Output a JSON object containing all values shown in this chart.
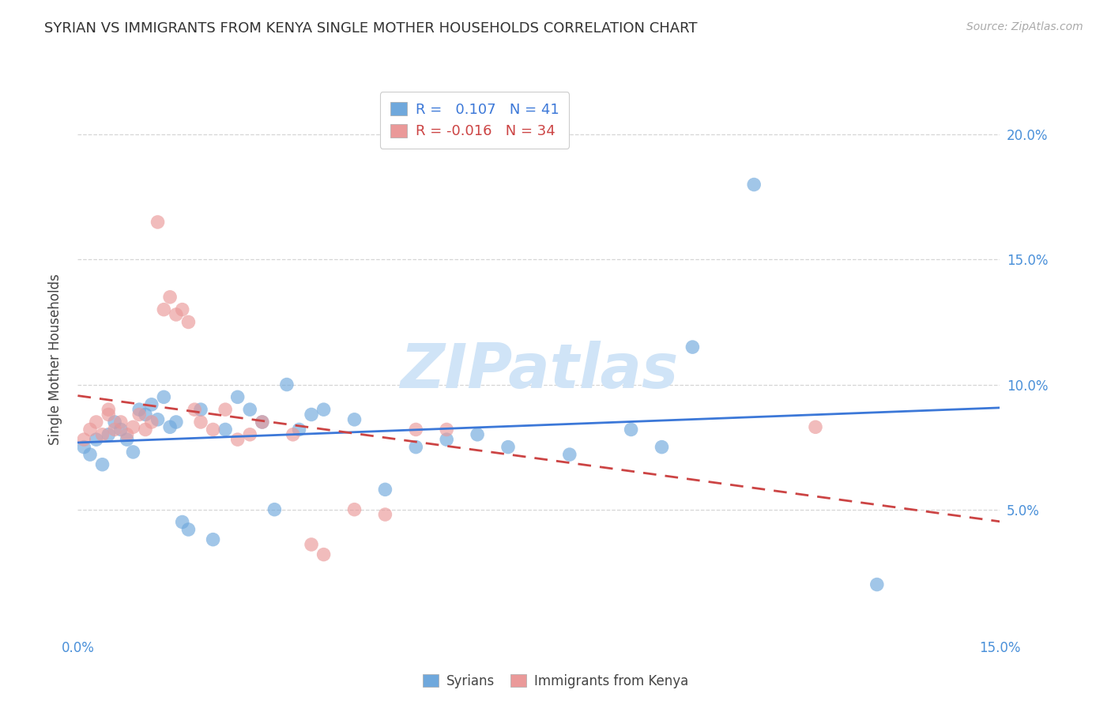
{
  "title": "SYRIAN VS IMMIGRANTS FROM KENYA SINGLE MOTHER HOUSEHOLDS CORRELATION CHART",
  "source": "Source: ZipAtlas.com",
  "ylabel": "Single Mother Households",
  "xlim": [
    0.0,
    0.15
  ],
  "ylim": [
    0.0,
    0.22
  ],
  "yticks": [
    0.05,
    0.1,
    0.15,
    0.2
  ],
  "right_ytick_labels": [
    "5.0%",
    "10.0%",
    "15.0%",
    "20.0%"
  ],
  "legend_blue_r": " 0.107",
  "legend_blue_n": "41",
  "legend_pink_r": "-0.016",
  "legend_pink_n": "34",
  "blue_color": "#6fa8dc",
  "pink_color": "#ea9999",
  "blue_line_color": "#3c78d8",
  "pink_line_color": "#cc4444",
  "tick_color": "#4a90d9",
  "watermark_color": "#d0e4f7",
  "syrians_x": [
    0.001,
    0.002,
    0.003,
    0.004,
    0.005,
    0.006,
    0.007,
    0.008,
    0.009,
    0.01,
    0.011,
    0.012,
    0.013,
    0.014,
    0.015,
    0.016,
    0.017,
    0.018,
    0.02,
    0.022,
    0.024,
    0.026,
    0.028,
    0.03,
    0.032,
    0.034,
    0.036,
    0.038,
    0.04,
    0.045,
    0.05,
    0.055,
    0.06,
    0.065,
    0.07,
    0.08,
    0.09,
    0.095,
    0.1,
    0.11,
    0.13
  ],
  "syrians_y": [
    0.075,
    0.072,
    0.078,
    0.068,
    0.08,
    0.085,
    0.082,
    0.078,
    0.073,
    0.09,
    0.088,
    0.092,
    0.086,
    0.095,
    0.083,
    0.085,
    0.045,
    0.042,
    0.09,
    0.038,
    0.082,
    0.095,
    0.09,
    0.085,
    0.05,
    0.1,
    0.082,
    0.088,
    0.09,
    0.086,
    0.058,
    0.075,
    0.078,
    0.08,
    0.075,
    0.072,
    0.082,
    0.075,
    0.115,
    0.18,
    0.02
  ],
  "kenya_x": [
    0.001,
    0.002,
    0.003,
    0.004,
    0.005,
    0.005,
    0.006,
    0.007,
    0.008,
    0.009,
    0.01,
    0.011,
    0.012,
    0.013,
    0.014,
    0.015,
    0.016,
    0.017,
    0.018,
    0.019,
    0.02,
    0.022,
    0.024,
    0.026,
    0.028,
    0.03,
    0.035,
    0.038,
    0.04,
    0.045,
    0.05,
    0.055,
    0.06,
    0.12
  ],
  "kenya_y": [
    0.078,
    0.082,
    0.085,
    0.08,
    0.09,
    0.088,
    0.082,
    0.085,
    0.08,
    0.083,
    0.088,
    0.082,
    0.085,
    0.165,
    0.13,
    0.135,
    0.128,
    0.13,
    0.125,
    0.09,
    0.085,
    0.082,
    0.09,
    0.078,
    0.08,
    0.085,
    0.08,
    0.036,
    0.032,
    0.05,
    0.048,
    0.082,
    0.082,
    0.083
  ]
}
